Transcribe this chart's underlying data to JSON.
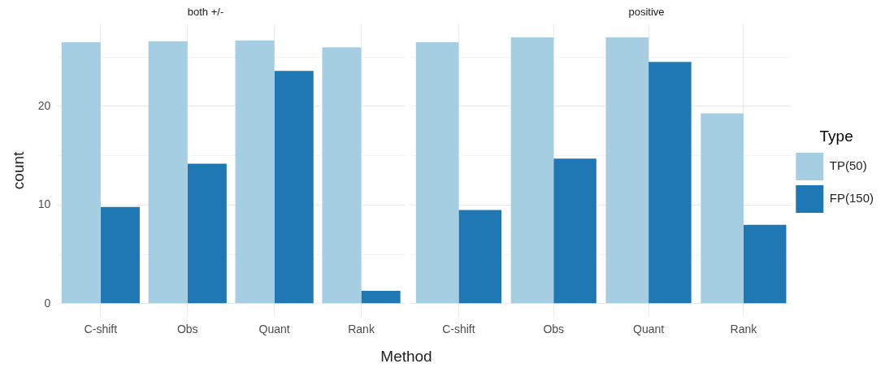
{
  "chart_data": [
    {
      "type": "bar",
      "title": "both +/-",
      "xlabel": "Method",
      "ylabel": "count",
      "categories": [
        "C-shift",
        "Obs",
        "Quant",
        "Rank"
      ],
      "series": [
        {
          "color": "#a6cee3",
          "values": [
            26.5,
            26.6,
            26.7,
            26.0
          ]
        },
        {
          "color": "#1f78b4",
          "values": [
            9.8,
            14.2,
            23.6,
            1.3
          ]
        }
      ],
      "ylim": [
        -1.35,
        28.35
      ],
      "yticks": [
        0,
        {
          "value": 5,
          "label": null
        },
        10,
        {
          "value": 15,
          "label": null
        },
        20,
        {
          "value": 25,
          "label": null
        }
      ],
      "grid": true,
      "legend": false
    },
    {
      "type": "bar",
      "title": "positive",
      "categories": [
        "C-shift",
        "Obs",
        "Quant",
        "Rank"
      ],
      "series": [
        {
          "name": "TP(50)",
          "color": "#a6cee3",
          "values": [
            26.5,
            27.0,
            27.0,
            19.3
          ]
        },
        {
          "name": "FP(150)",
          "color": "#1f78b4",
          "values": [
            9.5,
            14.7,
            24.5,
            8.0
          ]
        }
      ],
      "ylim": [
        -1.35,
        28.35
      ],
      "yticks": [
        0,
        {
          "value": 5,
          "label": null
        },
        10,
        {
          "value": 15,
          "label": null
        },
        20,
        {
          "value": 25,
          "label": null
        }
      ],
      "grid": true,
      "tick_labels": "x",
      "legend": "right",
      "legend_title": "Type"
    }
  ]
}
